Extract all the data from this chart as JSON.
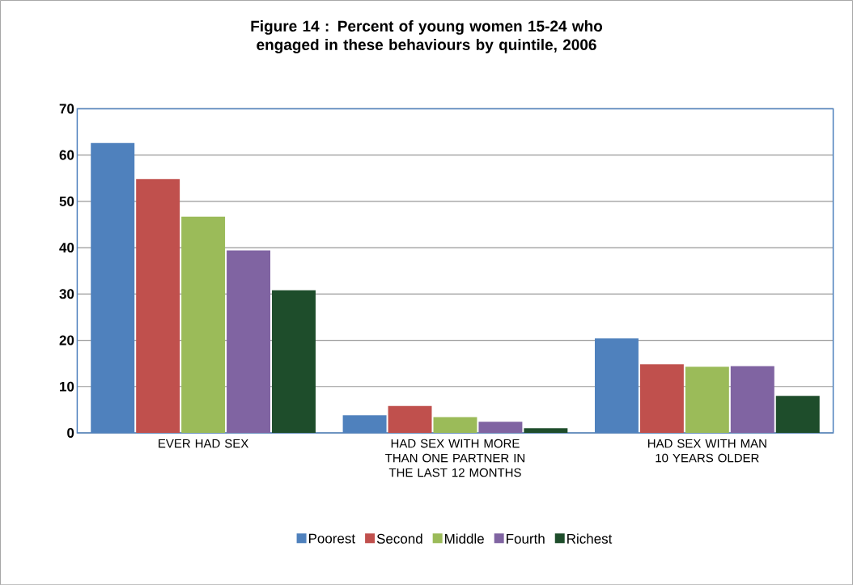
{
  "chart_data": {
    "type": "bar",
    "title": "Figure 14 : Percent of young women 15-24 who engaged in these behaviours by quintile, 2006",
    "categories": [
      "EVER HAD SEX",
      "HAD SEX WITH MORE THAN ONE PARTNER IN THE LAST 12 MONTHS",
      "HAD SEX WITH MAN 10 YEARS OLDER"
    ],
    "series": [
      {
        "name": "Poorest",
        "color": "#4f81bd",
        "values": [
          62.6,
          3.8,
          20.4
        ]
      },
      {
        "name": "Second",
        "color": "#c0504d",
        "values": [
          54.8,
          5.8,
          14.8
        ]
      },
      {
        "name": "Middle",
        "color": "#9bbb59",
        "values": [
          46.7,
          3.4,
          14.3
        ]
      },
      {
        "name": "Fourth",
        "color": "#8064a2",
        "values": [
          39.4,
          2.4,
          14.4
        ]
      },
      {
        "name": "Richest",
        "color": "#1e4d2b",
        "values": [
          30.8,
          1.0,
          8.0
        ]
      }
    ],
    "ylim": [
      0,
      70
    ],
    "yticks": [
      0,
      10,
      20,
      30,
      40,
      50,
      60,
      70
    ],
    "grid": "y",
    "legend": "bottom"
  }
}
